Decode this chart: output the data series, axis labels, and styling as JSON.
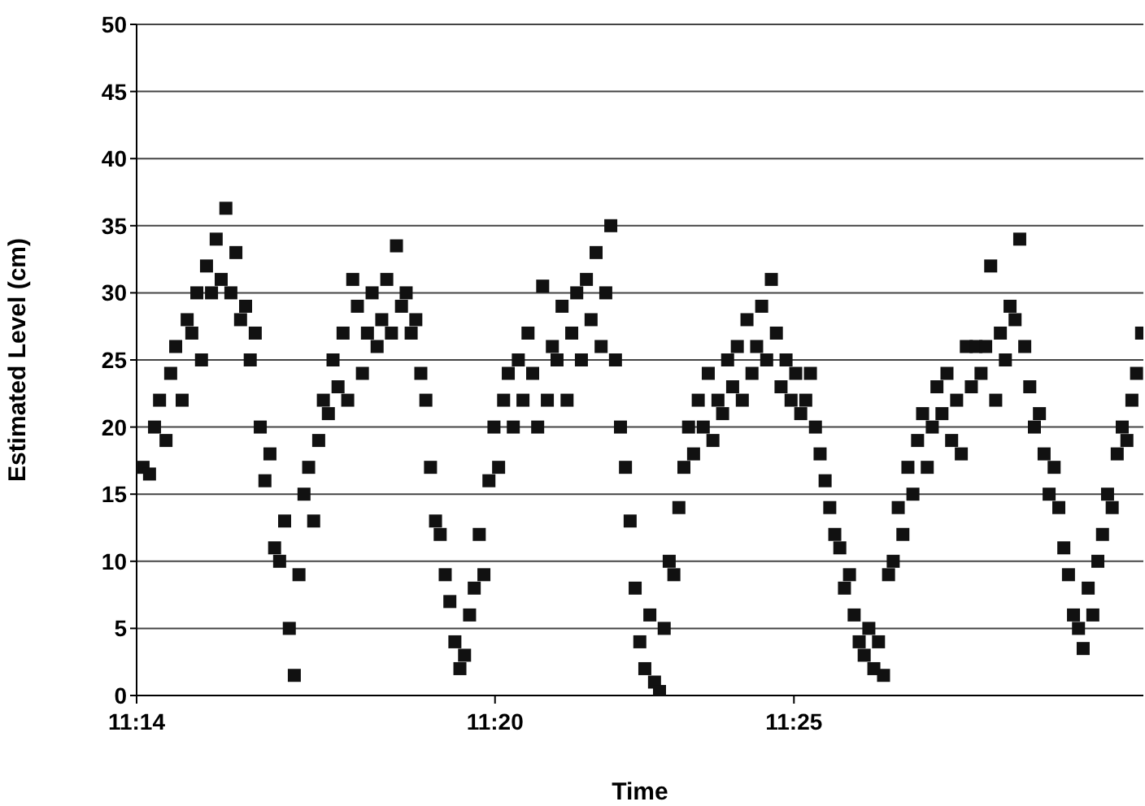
{
  "chart_data": {
    "type": "scatter",
    "xlabel": "Time",
    "ylabel": "Estimated Level (cm)",
    "xlim": [
      11.2333,
      11.5142
    ],
    "xticks": [
      {
        "value": 11.2333,
        "label": "11:14"
      },
      {
        "value": 11.3333,
        "label": "11:20"
      },
      {
        "value": 11.4167,
        "label": "11:25"
      }
    ],
    "ylim": [
      0,
      50
    ],
    "yticks": [
      0,
      5,
      10,
      15,
      20,
      25,
      30,
      35,
      40,
      45,
      50
    ],
    "grid": "y",
    "marker": "square",
    "series": [
      {
        "color": "#111111",
        "x": [
          11.2351,
          11.2369,
          11.2383,
          11.2397,
          11.2415,
          11.2428,
          11.2442,
          11.246,
          11.2474,
          11.2487,
          11.2501,
          11.2514,
          11.2528,
          11.2542,
          11.2555,
          11.2569,
          11.2582,
          11.2596,
          11.261,
          11.2623,
          11.2637,
          11.265,
          11.2664,
          11.2678,
          11.2691,
          11.2705,
          11.2718,
          11.2732,
          11.2746,
          11.2759,
          11.2773,
          11.2786,
          11.28,
          11.2813,
          11.2827,
          11.2841,
          11.2854,
          11.2868,
          11.2881,
          11.2895,
          11.2909,
          11.2922,
          11.2936,
          11.2949,
          11.2963,
          11.2977,
          11.299,
          11.3004,
          11.3017,
          11.3031,
          11.3044,
          11.3058,
          11.3072,
          11.3085,
          11.3099,
          11.3112,
          11.3126,
          11.314,
          11.3153,
          11.3167,
          11.318,
          11.3194,
          11.3207,
          11.3221,
          11.3235,
          11.3248,
          11.3262,
          11.3275,
          11.3289,
          11.3302,
          11.3316,
          11.333,
          11.3343,
          11.3357,
          11.337,
          11.3384,
          11.3398,
          11.3411,
          11.3425,
          11.3438,
          11.3452,
          11.3466,
          11.3479,
          11.3493,
          11.3506,
          11.352,
          11.3534,
          11.3547,
          11.3561,
          11.3574,
          11.3588,
          11.3601,
          11.3615,
          11.3629,
          11.3642,
          11.3656,
          11.3669,
          11.3683,
          11.3697,
          11.371,
          11.3724,
          11.3737,
          11.3751,
          11.3765,
          11.3778,
          11.3792,
          11.3805,
          11.3819,
          11.3832,
          11.3846,
          11.386,
          11.3873,
          11.3887,
          11.39,
          11.3914,
          11.3928,
          11.3941,
          11.3955,
          11.3968,
          11.3982,
          11.3996,
          11.4009,
          11.4023,
          11.4036,
          11.405,
          11.4063,
          11.4077,
          11.4091,
          11.4104,
          11.4118,
          11.4131,
          11.4145,
          11.4159,
          11.4172,
          11.4186,
          11.42,
          11.4213,
          11.4227,
          11.424,
          11.4254,
          11.4267,
          11.4281,
          11.4295,
          11.4308,
          11.4322,
          11.4335,
          11.4349,
          11.4363,
          11.4376,
          11.439,
          11.4403,
          11.4417,
          11.4431,
          11.4444,
          11.4458,
          11.4471,
          11.4485,
          11.4499,
          11.4512,
          11.4526,
          11.4539,
          11.4553,
          11.4566,
          11.458,
          11.4594,
          11.4607,
          11.4621,
          11.4634,
          11.4648,
          11.4662,
          11.4675,
          11.4689,
          11.4702,
          11.4716,
          11.473,
          11.4743,
          11.4757,
          11.477,
          11.4784,
          11.4797,
          11.4811,
          11.4825,
          11.4838,
          11.4852,
          11.4865,
          11.4879,
          11.4893,
          11.4906,
          11.492,
          11.4933,
          11.4947,
          11.4961,
          11.4974,
          11.4988,
          11.5001,
          11.5015,
          11.5028,
          11.5042,
          11.5055,
          11.5069,
          11.5083,
          11.5096,
          11.511,
          11.5123,
          11.5137
        ],
        "values": [
          17,
          16.5,
          20,
          22,
          19,
          24,
          26,
          22,
          28,
          27,
          30,
          25,
          32,
          30,
          34,
          31,
          36.3,
          30,
          33,
          28,
          29,
          25,
          27,
          20,
          16,
          18,
          11,
          10,
          13,
          5,
          1.5,
          9,
          15,
          17,
          13,
          19,
          22,
          21,
          25,
          23,
          27,
          22,
          31,
          29,
          24,
          27,
          30,
          26,
          28,
          31,
          27,
          33.5,
          29,
          30,
          27,
          28,
          24,
          22,
          17,
          13,
          12,
          9,
          7,
          4,
          2,
          3,
          6,
          8,
          12,
          9,
          16,
          20,
          17,
          22,
          24,
          20,
          25,
          22,
          27,
          24,
          20,
          30.5,
          22,
          26,
          25,
          29,
          22,
          27,
          30,
          25,
          31,
          28,
          33,
          26,
          30,
          35,
          25,
          20,
          17,
          13,
          8,
          4,
          2,
          6,
          1,
          0.3,
          5,
          10,
          9,
          14,
          17,
          20,
          18,
          22,
          20,
          24,
          19,
          22,
          21,
          25,
          23,
          26,
          22,
          28,
          24,
          26,
          29,
          25,
          31,
          27,
          23,
          25,
          22,
          24,
          21,
          22,
          24,
          20,
          18,
          16,
          14,
          12,
          11,
          8,
          9,
          6,
          4,
          3,
          5,
          2,
          4,
          1.5,
          9,
          10,
          14,
          12,
          17,
          15,
          19,
          21,
          17,
          20,
          23,
          21,
          24,
          19,
          22,
          18,
          26,
          23,
          26,
          24,
          26,
          32,
          22,
          27,
          25,
          29,
          28,
          34,
          26,
          23,
          20,
          21,
          18,
          15,
          17,
          14,
          11,
          9,
          6,
          5,
          3.5,
          8,
          6,
          10,
          12,
          15,
          14,
          18,
          20,
          19,
          22,
          24,
          27
        ]
      }
    ]
  }
}
